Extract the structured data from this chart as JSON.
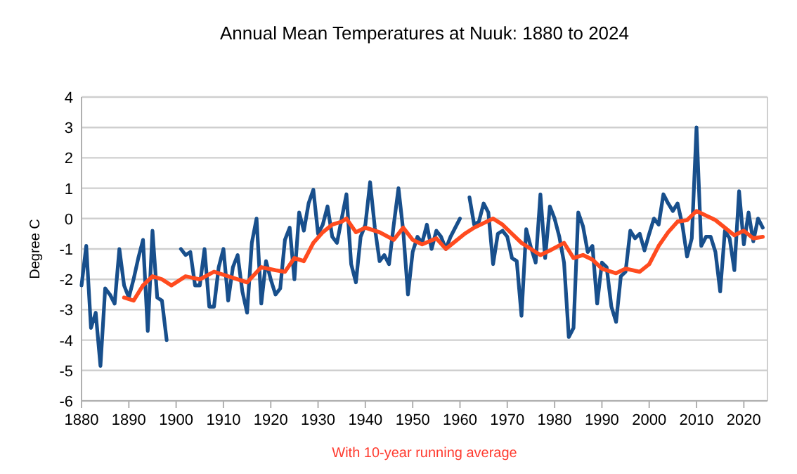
{
  "chart_data": {
    "type": "line",
    "title": "Annual Mean Temperatures at Nuuk: 1880 to 2024",
    "ylabel": "Degree C",
    "annotations": [
      "With 10-year running average"
    ],
    "x": [
      1880,
      1881,
      1882,
      1883,
      1884,
      1885,
      1886,
      1887,
      1888,
      1889,
      1890,
      1891,
      1892,
      1893,
      1894,
      1895,
      1896,
      1897,
      1898,
      1899,
      1900,
      1901,
      1902,
      1903,
      1904,
      1905,
      1906,
      1907,
      1908,
      1909,
      1910,
      1911,
      1912,
      1913,
      1914,
      1915,
      1916,
      1917,
      1918,
      1919,
      1920,
      1921,
      1922,
      1923,
      1924,
      1925,
      1926,
      1927,
      1928,
      1929,
      1930,
      1931,
      1932,
      1933,
      1934,
      1935,
      1936,
      1937,
      1938,
      1939,
      1940,
      1941,
      1942,
      1943,
      1944,
      1945,
      1946,
      1947,
      1948,
      1949,
      1950,
      1951,
      1952,
      1953,
      1954,
      1955,
      1956,
      1957,
      1958,
      1959,
      1960,
      1961,
      1962,
      1963,
      1964,
      1965,
      1966,
      1967,
      1968,
      1969,
      1970,
      1971,
      1972,
      1973,
      1974,
      1975,
      1976,
      1977,
      1978,
      1979,
      1980,
      1981,
      1982,
      1983,
      1984,
      1985,
      1986,
      1987,
      1988,
      1989,
      1990,
      1991,
      1992,
      1993,
      1994,
      1995,
      1996,
      1997,
      1998,
      1999,
      2000,
      2001,
      2002,
      2003,
      2004,
      2005,
      2006,
      2007,
      2008,
      2009,
      2010,
      2011,
      2012,
      2013,
      2014,
      2015,
      2016,
      2017,
      2018,
      2019,
      2020,
      2021,
      2022,
      2023,
      2024
    ],
    "series": [
      {
        "color": "#184f8c",
        "values": [
          -2.2,
          -0.9,
          -3.6,
          -3.1,
          -4.85,
          -2.3,
          -2.5,
          -2.8,
          -1.0,
          -2.2,
          -2.6,
          -2.0,
          -1.3,
          -0.7,
          -3.7,
          -0.4,
          -2.6,
          -2.7,
          -4.0,
          null,
          null,
          -1.0,
          -1.2,
          -1.1,
          -2.2,
          -2.2,
          -1.0,
          -2.9,
          -2.9,
          -1.6,
          -1.0,
          -2.7,
          -1.6,
          -1.2,
          -2.4,
          -3.1,
          -0.8,
          0.0,
          -2.8,
          -1.4,
          -2.0,
          -2.5,
          -2.3,
          -0.7,
          -0.3,
          -2.0,
          0.2,
          -0.4,
          0.5,
          0.95,
          -0.5,
          -0.2,
          0.4,
          -0.6,
          -0.8,
          0.0,
          0.8,
          -1.5,
          -2.1,
          -0.6,
          -0.2,
          1.2,
          -0.3,
          -1.4,
          -1.2,
          -1.5,
          -0.2,
          1.0,
          -0.4,
          -2.5,
          -1.1,
          -0.6,
          -0.8,
          -0.2,
          -1.0,
          -0.4,
          -0.6,
          -1.0,
          -0.6,
          -0.3,
          0.0,
          null,
          0.7,
          -0.2,
          -0.1,
          0.5,
          0.2,
          -1.5,
          -0.5,
          -0.4,
          -0.6,
          -1.3,
          -1.4,
          -3.2,
          -0.35,
          -0.95,
          -1.45,
          0.8,
          -1.3,
          0.4,
          0.0,
          -0.6,
          -1.45,
          -3.9,
          -3.6,
          0.2,
          -0.25,
          -1.1,
          -0.9,
          -2.8,
          -1.45,
          -1.6,
          -2.9,
          -3.4,
          -1.9,
          -1.75,
          -0.4,
          -0.65,
          -0.5,
          -1.05,
          -0.5,
          0.0,
          -0.2,
          0.8,
          0.5,
          0.25,
          0.5,
          -0.2,
          -1.25,
          -0.65,
          3.0,
          -0.9,
          -0.6,
          -0.6,
          -1.1,
          -2.4,
          -0.4,
          -0.65,
          -1.7,
          0.9,
          -0.85,
          0.2,
          -0.75,
          0.0,
          -0.3
        ]
      },
      {
        "color": "#ff4b1f",
        "x": [
          1889,
          1891,
          1893,
          1895,
          1897,
          1899,
          1902,
          1905,
          1908,
          1911,
          1915,
          1918,
          1921,
          1923,
          1925,
          1927,
          1929,
          1931,
          1933,
          1935,
          1936,
          1938,
          1940,
          1943,
          1946,
          1948,
          1950,
          1952,
          1955,
          1957,
          1959,
          1961,
          1963,
          1965,
          1967,
          1969,
          1971,
          1973,
          1975,
          1977,
          1979,
          1982,
          1984,
          1986,
          1988,
          1990,
          1993,
          1995,
          1998,
          2000,
          2002,
          2004,
          2006,
          2008,
          2010,
          2012,
          2014,
          2016,
          2018,
          2020,
          2022,
          2024
        ],
        "values": [
          -2.6,
          -2.7,
          -2.2,
          -1.9,
          -2.0,
          -2.2,
          -1.9,
          -2.0,
          -1.75,
          -1.9,
          -2.1,
          -1.6,
          -1.7,
          -1.75,
          -1.3,
          -1.4,
          -0.8,
          -0.45,
          -0.2,
          -0.1,
          0.0,
          -0.45,
          -0.3,
          -0.45,
          -0.7,
          -0.3,
          -0.7,
          -0.85,
          -0.65,
          -1.0,
          -0.75,
          -0.5,
          -0.3,
          -0.15,
          0.0,
          -0.2,
          -0.5,
          -0.8,
          -1.0,
          -1.2,
          -1.05,
          -0.8,
          -1.3,
          -1.2,
          -1.35,
          -1.65,
          -1.8,
          -1.65,
          -1.75,
          -1.5,
          -0.9,
          -0.45,
          -0.1,
          -0.05,
          0.25,
          0.1,
          -0.05,
          -0.3,
          -0.55,
          -0.4,
          -0.65,
          -0.6
        ]
      }
    ],
    "xlim": [
      1880,
      2025
    ],
    "xticks": [
      1880,
      1890,
      1900,
      1910,
      1920,
      1930,
      1940,
      1950,
      1960,
      1970,
      1980,
      1990,
      2000,
      2010,
      2020
    ],
    "ylim": [
      -6,
      4
    ],
    "yticks": [
      -6,
      -5,
      -4,
      -3,
      -2,
      -1,
      0,
      1,
      2,
      3,
      4
    ],
    "grid": "y"
  }
}
